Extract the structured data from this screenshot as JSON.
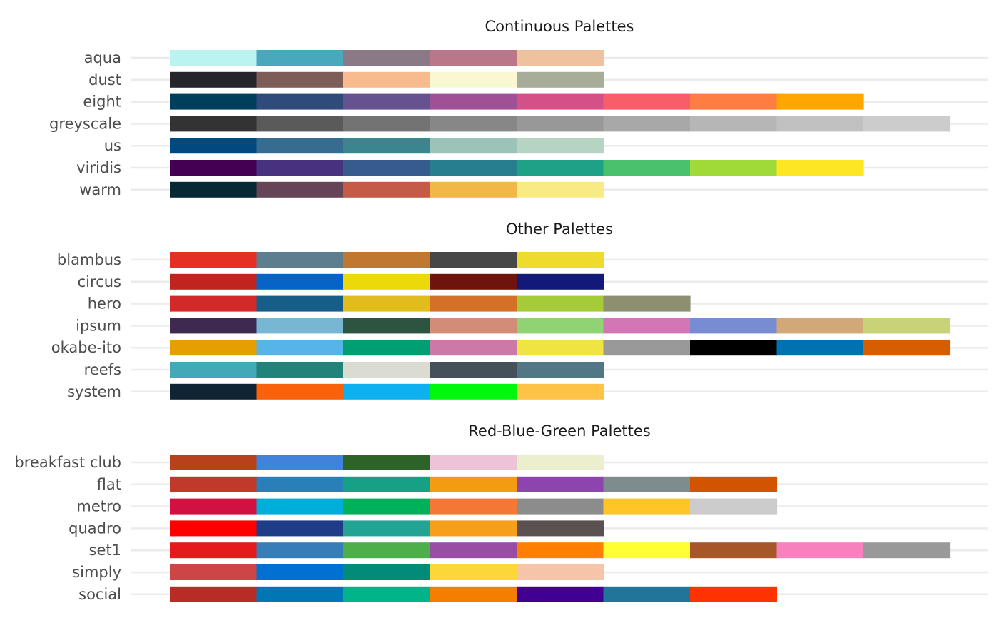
{
  "chart_data": [
    {
      "type": "table",
      "title": "Continuous Palettes",
      "rows": [
        {
          "name": "aqua",
          "colors": [
            "#BBF3F1",
            "#48A9BC",
            "#8B7A86",
            "#BC7689",
            "#F0C19F"
          ]
        },
        {
          "name": "dust",
          "colors": [
            "#25262B",
            "#7E5D59",
            "#F8BB8E",
            "#F9F8D3",
            "#A8AD99"
          ]
        },
        {
          "name": "eight",
          "colors": [
            "#003F5C",
            "#2F4B7C",
            "#665191",
            "#A05195",
            "#D45087",
            "#F95D6A",
            "#FF7C43",
            "#FFA600"
          ]
        },
        {
          "name": "greyscale",
          "colors": [
            "#333333",
            "#5A5A5A",
            "#737373",
            "#878787",
            "#989898",
            "#A8A8A8",
            "#B6B6B6",
            "#C1C1C1",
            "#CCCCCC"
          ]
        },
        {
          "name": "us",
          "colors": [
            "#004A7F",
            "#366C8F",
            "#3A858E",
            "#9CC3B7",
            "#B6D3C4"
          ]
        },
        {
          "name": "viridis",
          "colors": [
            "#440154",
            "#46327E",
            "#365C8D",
            "#277F8E",
            "#1FA187",
            "#4AC16D",
            "#A0DA39",
            "#FDE725"
          ]
        },
        {
          "name": "warm",
          "colors": [
            "#072835",
            "#664458",
            "#C45B46",
            "#F1B749",
            "#F8EB85"
          ]
        }
      ]
    },
    {
      "type": "table",
      "title": "Other Palettes",
      "rows": [
        {
          "name": "blambus",
          "colors": [
            "#E52E24",
            "#5C7E8F",
            "#C07830",
            "#474747",
            "#EFDB2E"
          ]
        },
        {
          "name": "circus",
          "colors": [
            "#C1241E",
            "#0664C9",
            "#EBD90A",
            "#6F130D",
            "#111A79"
          ]
        },
        {
          "name": "hero",
          "colors": [
            "#D2292B",
            "#165E88",
            "#E0BD1C",
            "#D57028",
            "#A5CB39",
            "#8D8F70"
          ]
        },
        {
          "name": "ipsum",
          "colors": [
            "#3E2A50",
            "#78B7D4",
            "#2D5341",
            "#D38C76",
            "#8FD373",
            "#D276B5",
            "#788CD3",
            "#D3A878",
            "#C8D278"
          ]
        },
        {
          "name": "okabe-ito",
          "colors": [
            "#E69F00",
            "#56B4E9",
            "#009E73",
            "#CC79A7",
            "#F0E442",
            "#999999",
            "#000000",
            "#0072B2",
            "#D55E00"
          ]
        },
        {
          "name": "reefs",
          "colors": [
            "#43A9B6",
            "#218379",
            "#DBDCD1",
            "#44515A",
            "#517784"
          ]
        },
        {
          "name": "system",
          "colors": [
            "#0F2536",
            "#F9610B",
            "#0EB1EF",
            "#00F80E",
            "#FDC346"
          ]
        }
      ]
    },
    {
      "type": "table",
      "title": "Red-Blue-Green Palettes",
      "rows": [
        {
          "name": "breakfast club",
          "colors": [
            "#B6411A",
            "#4182DD",
            "#2D6328",
            "#EEC3D8",
            "#ECEFCD"
          ]
        },
        {
          "name": "flat",
          "colors": [
            "#C0392B",
            "#2980B9",
            "#16A085",
            "#F39C12",
            "#8E44AD",
            "#7F8C8D",
            "#D35400"
          ]
        },
        {
          "name": "metro",
          "colors": [
            "#D11141",
            "#00AEDB",
            "#00B159",
            "#F37735",
            "#8C8C8C",
            "#FFC425",
            "#CCCCCC"
          ]
        },
        {
          "name": "quadro",
          "colors": [
            "#FF0000",
            "#1F3C88",
            "#23A393",
            "#F79E1B",
            "#5C5151"
          ]
        },
        {
          "name": "set1",
          "colors": [
            "#E41A1C",
            "#377EB8",
            "#4DAF4A",
            "#984EA3",
            "#FF7F00",
            "#FFFF33",
            "#A65628",
            "#F781BF",
            "#999999"
          ]
        },
        {
          "name": "simply",
          "colors": [
            "#CD4545",
            "#0071D3",
            "#028B76",
            "#FDD738",
            "#F6C4A8"
          ]
        },
        {
          "name": "social",
          "colors": [
            "#B92B27",
            "#0077B5",
            "#00B489",
            "#F57D00",
            "#410093",
            "#21759B",
            "#FF3300"
          ]
        }
      ]
    }
  ]
}
